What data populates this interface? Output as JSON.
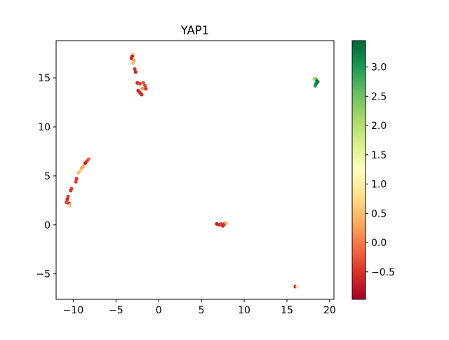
{
  "chart_data": {
    "type": "scatter",
    "title": "YAP1",
    "xlabel": "",
    "ylabel": "",
    "xlim": [
      -12.0,
      20.5
    ],
    "ylim": [
      -7.6,
      18.8
    ],
    "xticks": [
      -10,
      -5,
      0,
      5,
      10,
      15,
      20
    ],
    "yticks": [
      -5,
      0,
      5,
      10,
      15
    ],
    "xtick_labels": [
      "−10",
      "−5",
      "0",
      "5",
      "10",
      "15",
      "20"
    ],
    "ytick_labels": [
      "−5",
      "0",
      "5",
      "10",
      "15"
    ],
    "grid": false,
    "colorbar": {
      "colormap": "RdYlGn",
      "min": -0.97,
      "max": 3.45,
      "ticks": [
        -0.5,
        0.0,
        0.5,
        1.0,
        1.5,
        2.0,
        2.5,
        3.0
      ],
      "tick_labels": [
        "−0.5",
        "0.0",
        "0.5",
        "1.0",
        "1.5",
        "2.0",
        "2.5",
        "3.0"
      ],
      "colors": [
        "#a50026",
        "#d73027",
        "#f46d43",
        "#fdae61",
        "#fee08b",
        "#ffffbf",
        "#d9ef8b",
        "#a6d96a",
        "#66bd63",
        "#1a9850",
        "#006837"
      ]
    },
    "points": [
      {
        "x": -3.0,
        "y": 17.4,
        "v": 0.6
      },
      {
        "x": -3.1,
        "y": 17.2,
        "v": -0.7
      },
      {
        "x": -3.2,
        "y": 17.0,
        "v": -0.6
      },
      {
        "x": -2.9,
        "y": 16.8,
        "v": 0.3
      },
      {
        "x": -3.0,
        "y": 16.5,
        "v": 0.5
      },
      {
        "x": -2.8,
        "y": 15.9,
        "v": -0.5
      },
      {
        "x": -2.7,
        "y": 15.6,
        "v": -0.6
      },
      {
        "x": -2.5,
        "y": 14.5,
        "v": -0.6
      },
      {
        "x": -2.2,
        "y": 14.4,
        "v": -0.4
      },
      {
        "x": -1.8,
        "y": 14.5,
        "v": -0.3
      },
      {
        "x": -1.6,
        "y": 14.2,
        "v": -0.4
      },
      {
        "x": -1.9,
        "y": 13.9,
        "v": 0.2
      },
      {
        "x": -1.5,
        "y": 13.9,
        "v": -0.5
      },
      {
        "x": -2.4,
        "y": 13.7,
        "v": -0.6
      },
      {
        "x": -2.2,
        "y": 13.5,
        "v": -0.6
      },
      {
        "x": -2.0,
        "y": 13.3,
        "v": -0.6
      },
      {
        "x": -8.2,
        "y": 6.7,
        "v": -0.2
      },
      {
        "x": -8.4,
        "y": 6.5,
        "v": -0.4
      },
      {
        "x": -8.6,
        "y": 6.3,
        "v": -0.7
      },
      {
        "x": -8.8,
        "y": 6.0,
        "v": 0.4
      },
      {
        "x": -9.0,
        "y": 5.8,
        "v": 0.3
      },
      {
        "x": -9.2,
        "y": 5.5,
        "v": 0.6
      },
      {
        "x": -9.4,
        "y": 5.3,
        "v": 0.5
      },
      {
        "x": -9.6,
        "y": 4.7,
        "v": -0.5
      },
      {
        "x": -9.7,
        "y": 4.4,
        "v": -0.4
      },
      {
        "x": -10.2,
        "y": 3.7,
        "v": -0.3
      },
      {
        "x": -10.3,
        "y": 3.5,
        "v": -0.5
      },
      {
        "x": -10.6,
        "y": 2.9,
        "v": -0.4
      },
      {
        "x": -10.7,
        "y": 2.6,
        "v": -0.6
      },
      {
        "x": -10.8,
        "y": 2.3,
        "v": -0.3
      },
      {
        "x": -10.5,
        "y": 2.2,
        "v": -0.5
      },
      {
        "x": -10.4,
        "y": 2.0,
        "v": 0.6
      },
      {
        "x": 6.8,
        "y": 0.1,
        "v": -0.7
      },
      {
        "x": 7.1,
        "y": 0.0,
        "v": -0.6
      },
      {
        "x": 7.3,
        "y": 0.1,
        "v": -0.4
      },
      {
        "x": 7.5,
        "y": -0.1,
        "v": -0.6
      },
      {
        "x": 7.7,
        "y": 0.1,
        "v": -0.5
      },
      {
        "x": 7.9,
        "y": 0.2,
        "v": 0.5
      },
      {
        "x": 16.0,
        "y": -6.3,
        "v": -0.9
      },
      {
        "x": 16.2,
        "y": -6.3,
        "v": 0.9
      },
      {
        "x": 18.2,
        "y": 14.9,
        "v": 2.0
      },
      {
        "x": 18.4,
        "y": 14.9,
        "v": 2.3
      },
      {
        "x": 18.5,
        "y": 14.7,
        "v": 3.1
      },
      {
        "x": 18.6,
        "y": 14.6,
        "v": 3.3
      },
      {
        "x": 18.3,
        "y": 14.2,
        "v": 2.9
      },
      {
        "x": 18.4,
        "y": 14.4,
        "v": 3.2
      }
    ]
  }
}
